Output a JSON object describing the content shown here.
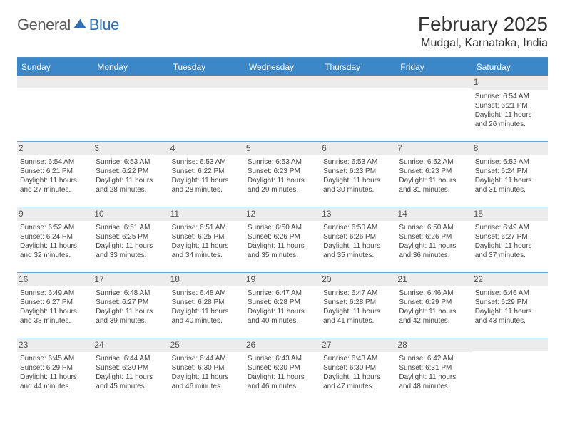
{
  "logo": {
    "text1": "General",
    "text2": "Blue",
    "color_gray": "#5a5a5a",
    "color_blue": "#2d6db0"
  },
  "title": {
    "month": "February 2025",
    "location": "Mudgal, Karnataka, India",
    "fontsize_month": 28,
    "fontsize_loc": 16
  },
  "colors": {
    "header_bg": "#3b87c8",
    "header_text": "#ffffff",
    "row_divider": "#6f9fcf",
    "daynum_bg": "#ececec",
    "text": "#444444",
    "background": "#ffffff"
  },
  "typography": {
    "body_fontsize": 10,
    "dayhead_fontsize": 12,
    "daynum_fontsize": 12
  },
  "day_headers": [
    "Sunday",
    "Monday",
    "Tuesday",
    "Wednesday",
    "Thursday",
    "Friday",
    "Saturday"
  ],
  "weeks": [
    [
      null,
      null,
      null,
      null,
      null,
      null,
      {
        "n": "1",
        "sr": "Sunrise: 6:54 AM",
        "ss": "Sunset: 6:21 PM",
        "dl1": "Daylight: 11 hours",
        "dl2": "and 26 minutes."
      }
    ],
    [
      {
        "n": "2",
        "sr": "Sunrise: 6:54 AM",
        "ss": "Sunset: 6:21 PM",
        "dl1": "Daylight: 11 hours",
        "dl2": "and 27 minutes."
      },
      {
        "n": "3",
        "sr": "Sunrise: 6:53 AM",
        "ss": "Sunset: 6:22 PM",
        "dl1": "Daylight: 11 hours",
        "dl2": "and 28 minutes."
      },
      {
        "n": "4",
        "sr": "Sunrise: 6:53 AM",
        "ss": "Sunset: 6:22 PM",
        "dl1": "Daylight: 11 hours",
        "dl2": "and 28 minutes."
      },
      {
        "n": "5",
        "sr": "Sunrise: 6:53 AM",
        "ss": "Sunset: 6:23 PM",
        "dl1": "Daylight: 11 hours",
        "dl2": "and 29 minutes."
      },
      {
        "n": "6",
        "sr": "Sunrise: 6:53 AM",
        "ss": "Sunset: 6:23 PM",
        "dl1": "Daylight: 11 hours",
        "dl2": "and 30 minutes."
      },
      {
        "n": "7",
        "sr": "Sunrise: 6:52 AM",
        "ss": "Sunset: 6:23 PM",
        "dl1": "Daylight: 11 hours",
        "dl2": "and 31 minutes."
      },
      {
        "n": "8",
        "sr": "Sunrise: 6:52 AM",
        "ss": "Sunset: 6:24 PM",
        "dl1": "Daylight: 11 hours",
        "dl2": "and 31 minutes."
      }
    ],
    [
      {
        "n": "9",
        "sr": "Sunrise: 6:52 AM",
        "ss": "Sunset: 6:24 PM",
        "dl1": "Daylight: 11 hours",
        "dl2": "and 32 minutes."
      },
      {
        "n": "10",
        "sr": "Sunrise: 6:51 AM",
        "ss": "Sunset: 6:25 PM",
        "dl1": "Daylight: 11 hours",
        "dl2": "and 33 minutes."
      },
      {
        "n": "11",
        "sr": "Sunrise: 6:51 AM",
        "ss": "Sunset: 6:25 PM",
        "dl1": "Daylight: 11 hours",
        "dl2": "and 34 minutes."
      },
      {
        "n": "12",
        "sr": "Sunrise: 6:50 AM",
        "ss": "Sunset: 6:26 PM",
        "dl1": "Daylight: 11 hours",
        "dl2": "and 35 minutes."
      },
      {
        "n": "13",
        "sr": "Sunrise: 6:50 AM",
        "ss": "Sunset: 6:26 PM",
        "dl1": "Daylight: 11 hours",
        "dl2": "and 35 minutes."
      },
      {
        "n": "14",
        "sr": "Sunrise: 6:50 AM",
        "ss": "Sunset: 6:26 PM",
        "dl1": "Daylight: 11 hours",
        "dl2": "and 36 minutes."
      },
      {
        "n": "15",
        "sr": "Sunrise: 6:49 AM",
        "ss": "Sunset: 6:27 PM",
        "dl1": "Daylight: 11 hours",
        "dl2": "and 37 minutes."
      }
    ],
    [
      {
        "n": "16",
        "sr": "Sunrise: 6:49 AM",
        "ss": "Sunset: 6:27 PM",
        "dl1": "Daylight: 11 hours",
        "dl2": "and 38 minutes."
      },
      {
        "n": "17",
        "sr": "Sunrise: 6:48 AM",
        "ss": "Sunset: 6:27 PM",
        "dl1": "Daylight: 11 hours",
        "dl2": "and 39 minutes."
      },
      {
        "n": "18",
        "sr": "Sunrise: 6:48 AM",
        "ss": "Sunset: 6:28 PM",
        "dl1": "Daylight: 11 hours",
        "dl2": "and 40 minutes."
      },
      {
        "n": "19",
        "sr": "Sunrise: 6:47 AM",
        "ss": "Sunset: 6:28 PM",
        "dl1": "Daylight: 11 hours",
        "dl2": "and 40 minutes."
      },
      {
        "n": "20",
        "sr": "Sunrise: 6:47 AM",
        "ss": "Sunset: 6:28 PM",
        "dl1": "Daylight: 11 hours",
        "dl2": "and 41 minutes."
      },
      {
        "n": "21",
        "sr": "Sunrise: 6:46 AM",
        "ss": "Sunset: 6:29 PM",
        "dl1": "Daylight: 11 hours",
        "dl2": "and 42 minutes."
      },
      {
        "n": "22",
        "sr": "Sunrise: 6:46 AM",
        "ss": "Sunset: 6:29 PM",
        "dl1": "Daylight: 11 hours",
        "dl2": "and 43 minutes."
      }
    ],
    [
      {
        "n": "23",
        "sr": "Sunrise: 6:45 AM",
        "ss": "Sunset: 6:29 PM",
        "dl1": "Daylight: 11 hours",
        "dl2": "and 44 minutes."
      },
      {
        "n": "24",
        "sr": "Sunrise: 6:44 AM",
        "ss": "Sunset: 6:30 PM",
        "dl1": "Daylight: 11 hours",
        "dl2": "and 45 minutes."
      },
      {
        "n": "25",
        "sr": "Sunrise: 6:44 AM",
        "ss": "Sunset: 6:30 PM",
        "dl1": "Daylight: 11 hours",
        "dl2": "and 46 minutes."
      },
      {
        "n": "26",
        "sr": "Sunrise: 6:43 AM",
        "ss": "Sunset: 6:30 PM",
        "dl1": "Daylight: 11 hours",
        "dl2": "and 46 minutes."
      },
      {
        "n": "27",
        "sr": "Sunrise: 6:43 AM",
        "ss": "Sunset: 6:30 PM",
        "dl1": "Daylight: 11 hours",
        "dl2": "and 47 minutes."
      },
      {
        "n": "28",
        "sr": "Sunrise: 6:42 AM",
        "ss": "Sunset: 6:31 PM",
        "dl1": "Daylight: 11 hours",
        "dl2": "and 48 minutes."
      },
      null
    ]
  ]
}
